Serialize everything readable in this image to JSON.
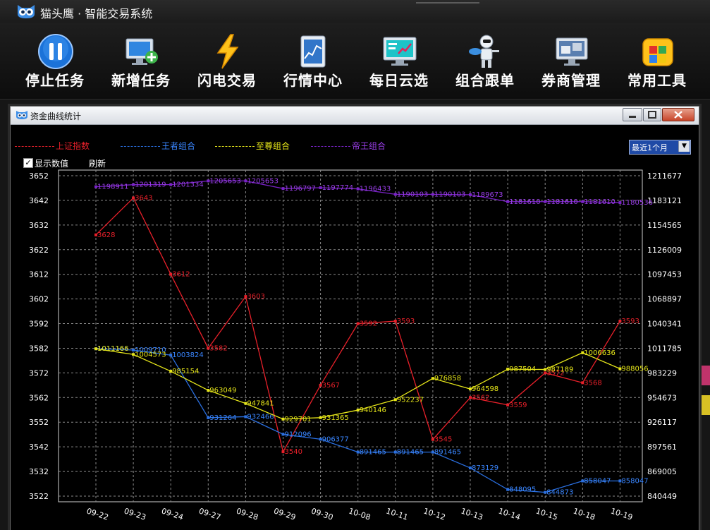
{
  "app": {
    "title": "猫头鹰 · 智能交易系统"
  },
  "toolbar": {
    "buttons": [
      {
        "label": "停止任务",
        "icon": "pause-icon"
      },
      {
        "label": "新增任务",
        "icon": "add-task-icon"
      },
      {
        "label": "闪电交易",
        "icon": "lightning-icon"
      },
      {
        "label": "行情中心",
        "icon": "market-chart-icon"
      },
      {
        "label": "每日云选",
        "icon": "daily-pick-monitor-icon"
      },
      {
        "label": "组合跟单",
        "icon": "copy-trade-robot-icon"
      },
      {
        "label": "券商管理",
        "icon": "broker-monitor-icon"
      },
      {
        "label": "常用工具",
        "icon": "toolbox-icon"
      }
    ]
  },
  "window": {
    "title": "资金曲线统计",
    "controls": {
      "minimize": "minimize-icon",
      "maximize": "maximize-icon",
      "close": "close-icon"
    },
    "legend": [
      {
        "label": "上证指数",
        "color": "#e8202a"
      },
      {
        "label": "王者组合",
        "color": "#2a6fe0"
      },
      {
        "label": "至尊组合",
        "color": "#e6e61a"
      },
      {
        "label": "帝王组合",
        "color": "#7a22c8"
      }
    ],
    "range": {
      "selected": "最近1个月"
    },
    "show_values": {
      "label": "显示数值",
      "checked": true
    },
    "refresh": {
      "label": "刷新"
    }
  },
  "chart_data": {
    "type": "line",
    "categories": [
      "09-22",
      "09-23",
      "09-24",
      "09-27",
      "09-28",
      "09-29",
      "09-30",
      "10-08",
      "10-11",
      "10-12",
      "10-13",
      "10-14",
      "10-15",
      "10-18",
      "10-19"
    ],
    "left_axis": {
      "ticks": [
        3652,
        3642,
        3632,
        3622,
        3612,
        3602,
        3592,
        3582,
        3572,
        3562,
        3552,
        3542,
        3532,
        3522
      ],
      "range": [
        3522,
        3652
      ]
    },
    "right_axis": {
      "ticks": [
        1211677,
        1183121,
        1154565,
        1126009,
        1097453,
        1068897,
        1040341,
        1011785,
        983229,
        954673,
        926117,
        897561,
        869005,
        840449
      ],
      "range": [
        840449,
        1211677
      ]
    },
    "grid": true,
    "series": [
      {
        "name": "上证指数",
        "axis": "left",
        "color": "#e8202a",
        "values": [
          3628,
          3643,
          3612,
          3582,
          3603,
          3540,
          3567,
          3592,
          3593,
          3545,
          3562,
          3559,
          3572,
          3568,
          3593
        ]
      },
      {
        "name": "王者组合",
        "axis": "right",
        "color": "#2a6fe0",
        "values": [
          1011166,
          1009710,
          1003824,
          931264,
          932466,
          912096,
          906377,
          891465,
          891465,
          891465,
          873129,
          848095,
          844873,
          858047,
          858047
        ]
      },
      {
        "name": "至尊组合",
        "axis": "right",
        "color": "#e6e61a",
        "values": [
          1011166,
          1004573,
          985154,
          963049,
          947841,
          929701,
          931365,
          940146,
          952237,
          976858,
          964598,
          987504,
          987189,
          1006636,
          988056
        ]
      },
      {
        "name": "帝王组合",
        "axis": "right",
        "color": "#7a22c8",
        "values": [
          1198911,
          1201319,
          1201334,
          1205653,
          1205653,
          1196797,
          1197774,
          1196433,
          1190103,
          1190103,
          1189673,
          1181610,
          1181610,
          1181610,
          1180536
        ]
      }
    ]
  }
}
